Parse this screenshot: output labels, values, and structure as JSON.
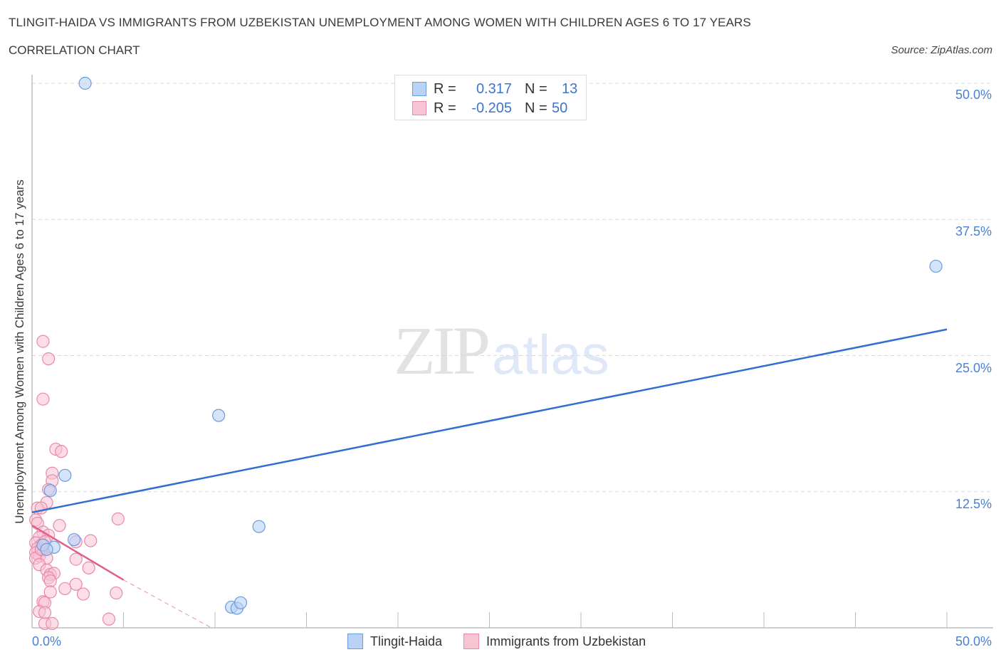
{
  "header": {
    "title": "TLINGIT-HAIDA VS IMMIGRANTS FROM UZBEKISTAN UNEMPLOYMENT AMONG WOMEN WITH CHILDREN AGES 6 TO 17 YEARS",
    "subtitle": "CORRELATION CHART",
    "source": "Source: ZipAtlas.com"
  },
  "watermark": {
    "zip": "ZIP",
    "atlas": "atlas"
  },
  "legend": {
    "rows": [
      {
        "r_label": "R =",
        "r_value": "0.317",
        "n_label": "N =",
        "n_value": "13",
        "series": "Tlingit-Haida"
      },
      {
        "r_label": "R =",
        "r_value": "-0.205",
        "n_label": "N =",
        "n_value": "50",
        "series": "Immigrants from Uzbekistan"
      }
    ]
  },
  "axes": {
    "ylabel": "Unemployment Among Women with Children Ages 6 to 17 years",
    "y_ticks": [
      "50.0%",
      "37.5%",
      "25.0%",
      "12.5%"
    ],
    "x_ticks": [
      "0.0%",
      "50.0%"
    ]
  },
  "bottom_legend": [
    "Tlingit-Haida",
    "Immigrants from Uzbekistan"
  ],
  "colors": {
    "blue_fill": "#b9d2f5",
    "blue_stroke": "#6a9be0",
    "blue_line": "#2e6fd0",
    "pink_fill": "#f8c3d3",
    "pink_stroke": "#e989a8",
    "pink_line": "#e0608a",
    "tick_text": "#4a7fd4",
    "grid": "#d9d9d9"
  },
  "chart_data": {
    "type": "scatter",
    "title": "TLINGIT-HAIDA VS IMMIGRANTS FROM UZBEKISTAN UNEMPLOYMENT AMONG WOMEN WITH CHILDREN AGES 6 TO 17 YEARS",
    "subtitle": "CORRELATION CHART",
    "xlabel": "",
    "ylabel": "Unemployment Among Women with Children Ages 6 to 17 years",
    "xlim": [
      0,
      50
    ],
    "ylim": [
      0,
      50
    ],
    "x_ticks": [
      "0.0%",
      "50.0%"
    ],
    "y_ticks": [
      "12.5%",
      "25.0%",
      "37.5%",
      "50.0%"
    ],
    "grid": true,
    "legend_position": "top-center and bottom",
    "series": [
      {
        "name": "Tlingit-Haida",
        "R": 0.317,
        "N": 13,
        "points": [
          [
            2.9,
            50.0
          ],
          [
            1.0,
            12.6
          ],
          [
            1.8,
            14.0
          ],
          [
            1.2,
            7.4
          ],
          [
            2.3,
            8.1
          ],
          [
            10.2,
            19.5
          ],
          [
            12.4,
            9.3
          ],
          [
            49.4,
            33.2
          ],
          [
            10.9,
            1.9
          ],
          [
            11.2,
            1.8
          ],
          [
            11.4,
            2.3
          ],
          [
            0.6,
            7.6
          ],
          [
            0.8,
            7.2
          ]
        ],
        "trendline": {
          "x": [
            0,
            50
          ],
          "y": [
            10.6,
            27.4
          ]
        }
      },
      {
        "name": "Immigrants from Uzbekistan",
        "R": -0.205,
        "N": 50,
        "points": [
          [
            0.6,
            26.3
          ],
          [
            0.9,
            24.7
          ],
          [
            0.6,
            21.0
          ],
          [
            1.3,
            16.4
          ],
          [
            1.6,
            16.2
          ],
          [
            1.1,
            14.2
          ],
          [
            1.1,
            13.5
          ],
          [
            0.9,
            12.7
          ],
          [
            0.8,
            11.5
          ],
          [
            0.3,
            11.0
          ],
          [
            0.5,
            11.0
          ],
          [
            0.2,
            9.9
          ],
          [
            0.3,
            9.6
          ],
          [
            1.5,
            9.4
          ],
          [
            0.6,
            8.8
          ],
          [
            0.9,
            8.5
          ],
          [
            0.4,
            8.3
          ],
          [
            0.2,
            7.8
          ],
          [
            0.5,
            7.6
          ],
          [
            0.3,
            7.3
          ],
          [
            0.6,
            7.1
          ],
          [
            0.2,
            6.9
          ],
          [
            0.4,
            6.6
          ],
          [
            0.2,
            6.4
          ],
          [
            0.8,
            6.4
          ],
          [
            0.4,
            5.8
          ],
          [
            0.8,
            5.3
          ],
          [
            1.0,
            4.9
          ],
          [
            1.2,
            5.0
          ],
          [
            0.9,
            4.6
          ],
          [
            1.0,
            4.3
          ],
          [
            3.2,
            8.0
          ],
          [
            2.4,
            7.9
          ],
          [
            2.4,
            6.3
          ],
          [
            3.1,
            5.5
          ],
          [
            4.7,
            10.0
          ],
          [
            2.4,
            4.0
          ],
          [
            1.8,
            3.6
          ],
          [
            1.0,
            3.3
          ],
          [
            2.8,
            3.1
          ],
          [
            4.6,
            3.2
          ],
          [
            0.6,
            2.4
          ],
          [
            0.7,
            2.3
          ],
          [
            4.2,
            0.8
          ],
          [
            0.7,
            0.4
          ],
          [
            1.1,
            0.4
          ],
          [
            0.4,
            1.5
          ],
          [
            0.7,
            1.4
          ],
          [
            0.5,
            7.2
          ],
          [
            0.7,
            7.9
          ]
        ],
        "trendline": {
          "x": [
            0,
            5
          ],
          "y": [
            9.4,
            4.4
          ],
          "dashed_extension": {
            "x": [
              5,
              9.8
            ],
            "y": [
              4.4,
              0
            ]
          }
        }
      }
    ]
  }
}
